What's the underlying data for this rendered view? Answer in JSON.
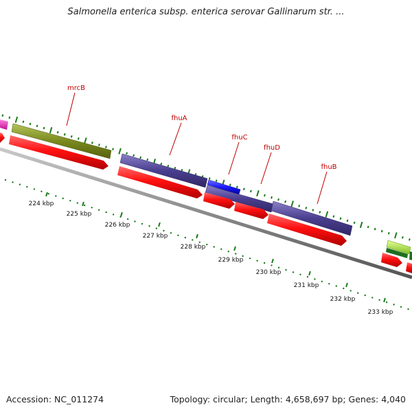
{
  "title": "Salmonella enterica subsp. enterica serovar Gallinarum str. ...",
  "footer": {
    "accession": "Accession: NC_011274",
    "summary": "Topology: circular; Length: 4,658,697 bp; Genes: 4,040"
  },
  "gene_labels": [
    "mrcB",
    "fhuA",
    "fhuC",
    "fhuD",
    "fhuB"
  ],
  "ruler_labels": [
    "224 kbp",
    "225 kbp",
    "226 kbp",
    "227 kbp",
    "228 kbp",
    "229 kbp",
    "230 kbp",
    "231 kbp",
    "232 kbp",
    "233 kbp"
  ],
  "colors": {
    "forward_cds": "#ff1010",
    "mrcB": "#7a8a1e",
    "fhu_operon": "#4a3f8f",
    "fhuC": "#1a1aff",
    "backbone": "#8a8a8a",
    "label": "#c00000",
    "tick_green": "#1a7a1a",
    "magenta_feature": "#e020b0",
    "lime_feature": "#a8e040"
  }
}
